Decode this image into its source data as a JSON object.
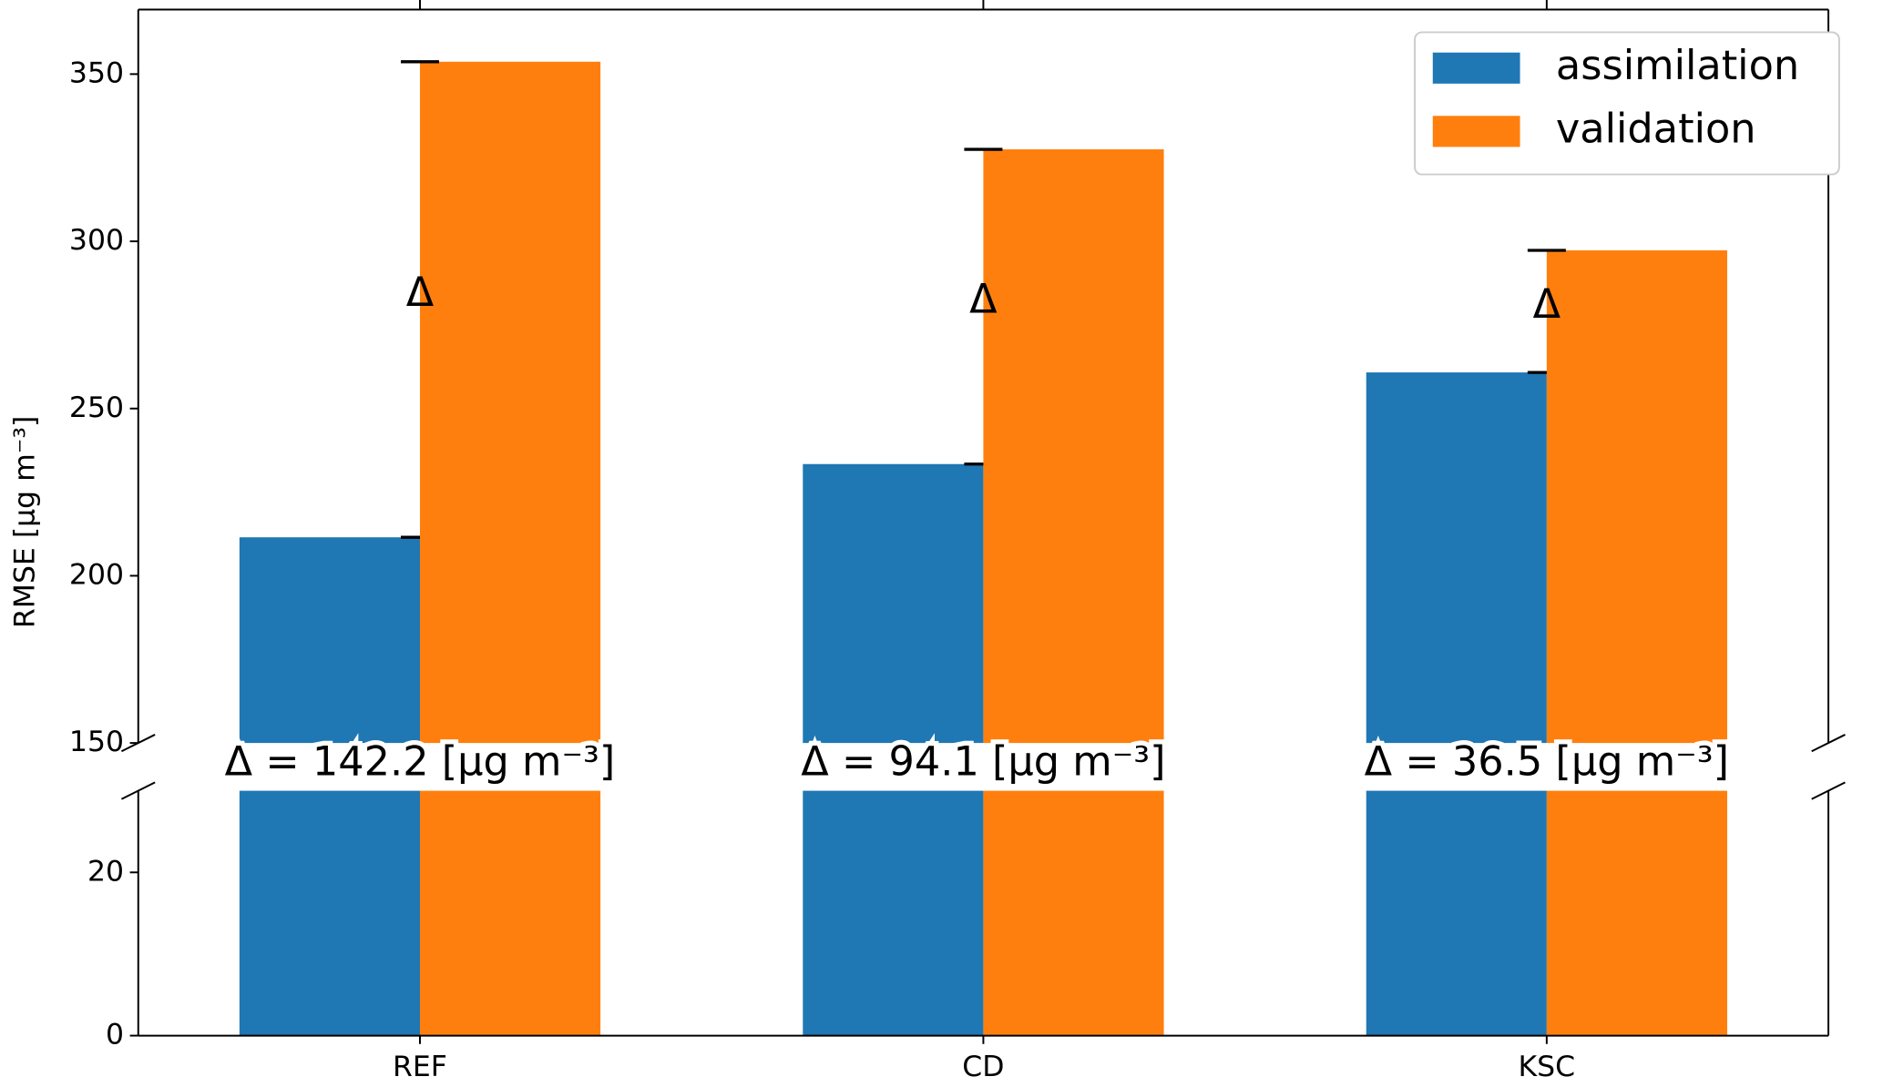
{
  "chart_data": {
    "type": "bar",
    "ylabel": "RMSE [μg m⁻³]",
    "categories": [
      "REF",
      "CD",
      "KSC"
    ],
    "series": [
      {
        "name": "assimilation",
        "color": "#1f77b4",
        "values": [
          211.5,
          233.4,
          260.8
        ]
      },
      {
        "name": "validation",
        "color": "#ff7f0e",
        "values": [
          353.7,
          327.5,
          297.3
        ]
      }
    ],
    "ylim": [
      150,
      369.3
    ],
    "yticks": [
      150,
      200,
      250,
      300,
      350
    ],
    "ylim_lower": [
      0,
      30
    ],
    "yticks_lower": [
      0,
      20
    ],
    "delta_symbols": [
      "Δ",
      "Δ",
      "Δ"
    ],
    "annotations": [
      "Δ = 142.2 [μg m⁻³]",
      "Δ = 94.1 [μg m⁻³]",
      "Δ = 36.5 [μg m⁻³]"
    ],
    "legend": "upper right"
  }
}
